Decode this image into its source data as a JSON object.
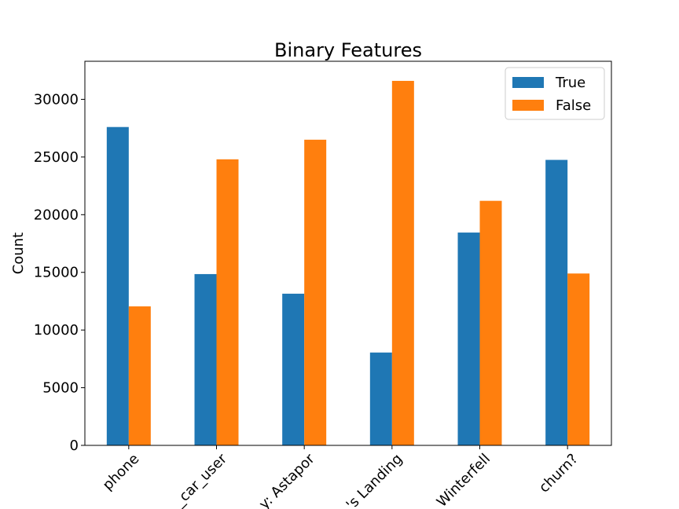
{
  "chart_data": {
    "type": "bar",
    "title": "Binary Features",
    "xlabel": "",
    "ylabel": "Count",
    "categories": [
      "phone",
      "ultimate_black_car_user",
      "city: Astapor",
      "city: King's Landing",
      "city: Winterfell",
      "churn?"
    ],
    "visible_tick_labels": [
      "phone",
      "_car_user",
      "y: Astapor",
      "'s Landing",
      "Winterfell",
      "churn?"
    ],
    "series": [
      {
        "name": "True",
        "color": "#1f77b4",
        "values": [
          27600,
          14850,
          13150,
          8050,
          18450,
          24750
        ]
      },
      {
        "name": "False",
        "color": "#ff7f0e",
        "values": [
          12050,
          24800,
          26500,
          31600,
          21200,
          14900
        ]
      }
    ],
    "ylim": [
      0,
      33300
    ],
    "yticks": [
      0,
      5000,
      10000,
      15000,
      20000,
      25000,
      30000
    ],
    "ytick_labels": [
      "0",
      "5000",
      "10000",
      "15000",
      "20000",
      "25000",
      "30000"
    ],
    "xtick_rotation": 45,
    "legend_position": "top-right",
    "grid": false
  }
}
